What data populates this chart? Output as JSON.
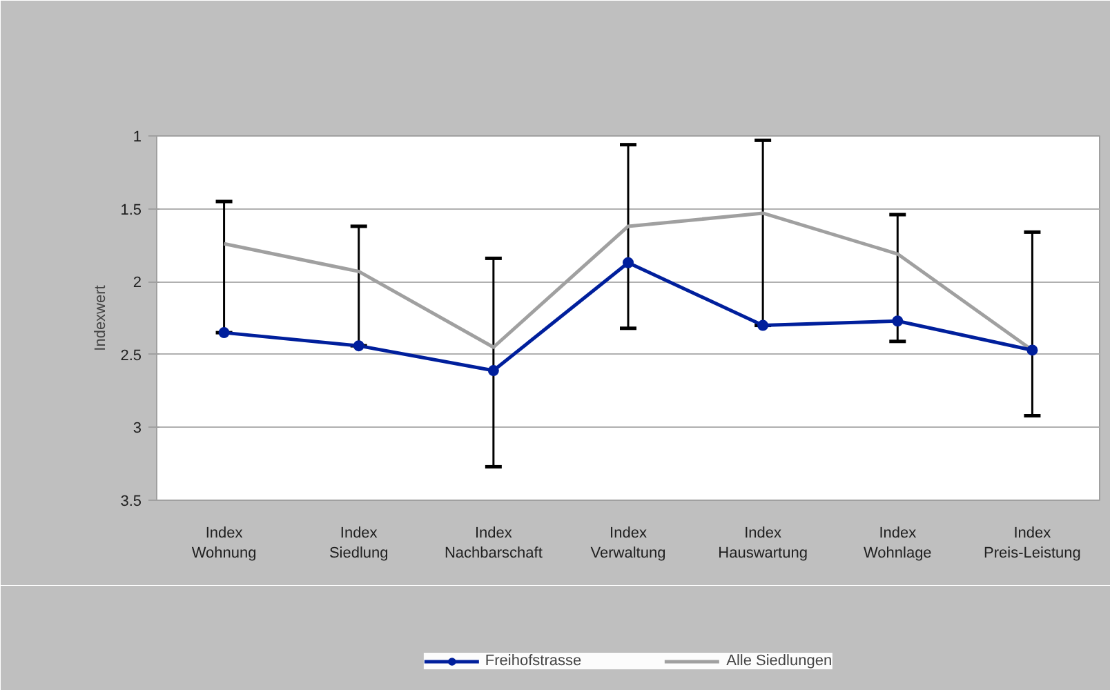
{
  "chart_data": {
    "type": "line",
    "ylabel": "Indexwert",
    "categories": [
      "Index Wohnung",
      "Index Siedlung",
      "Index Nachbarschaft",
      "Index Verwaltung",
      "Index Hauswartung",
      "Index Wohnlage",
      "Index Preis-Leistung"
    ],
    "series": [
      {
        "name": "Freihofstrasse",
        "color": "#001f9c",
        "marker": "circle",
        "values": [
          2.35,
          2.44,
          2.61,
          1.87,
          2.3,
          2.27,
          2.47
        ],
        "errors": [
          [
            1.45,
            2.35
          ],
          [
            1.62,
            2.44
          ],
          [
            1.84,
            3.27
          ],
          [
            1.06,
            2.32
          ],
          [
            1.03,
            2.3
          ],
          [
            1.54,
            2.41
          ],
          [
            1.66,
            2.92
          ]
        ]
      },
      {
        "name": "Alle Siedlungen",
        "color": "#a0a0a0",
        "values": [
          1.74,
          1.93,
          2.45,
          1.62,
          1.53,
          1.81,
          2.47
        ]
      }
    ],
    "ylim": [
      3.5,
      1
    ],
    "yticks": [
      1,
      1.5,
      2,
      2.5,
      3,
      3.5
    ],
    "grid": "y",
    "legend": "bottom"
  }
}
